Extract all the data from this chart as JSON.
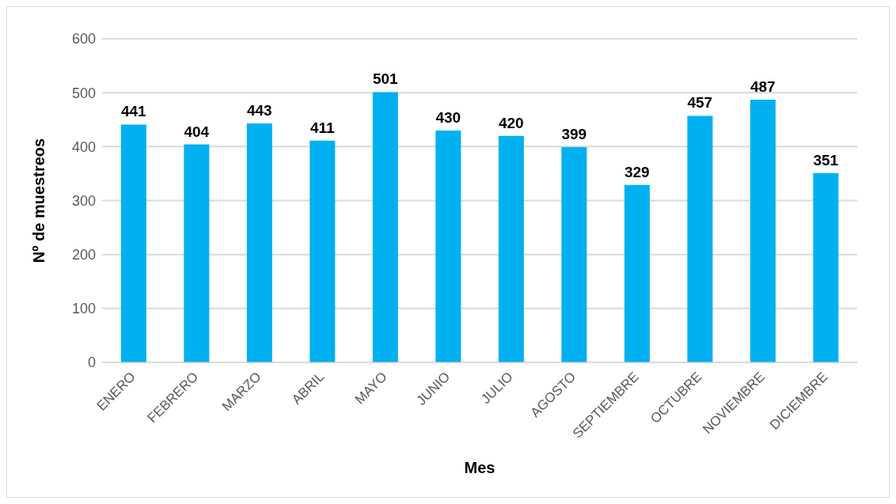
{
  "chart_data": {
    "type": "bar",
    "xlabel": "Mes",
    "ylabel": "Nº de muestreos",
    "categories": [
      "ENERO",
      "FEBRERO",
      "MARZO",
      "ABRIL",
      "MAYO",
      "JUNIO",
      "JULIO",
      "AGOSTO",
      "SEPTIEMBRE",
      "OCTUBRE",
      "NOVIEMBRE",
      "DICIEMBRE"
    ],
    "values": [
      441,
      404,
      443,
      411,
      501,
      430,
      420,
      399,
      329,
      457,
      487,
      351
    ],
    "color": "#00b0f0",
    "ylim": [
      0,
      600
    ],
    "yticks": [
      0,
      100,
      200,
      300,
      400,
      500,
      600
    ],
    "grid": "y",
    "data_labels": true
  }
}
